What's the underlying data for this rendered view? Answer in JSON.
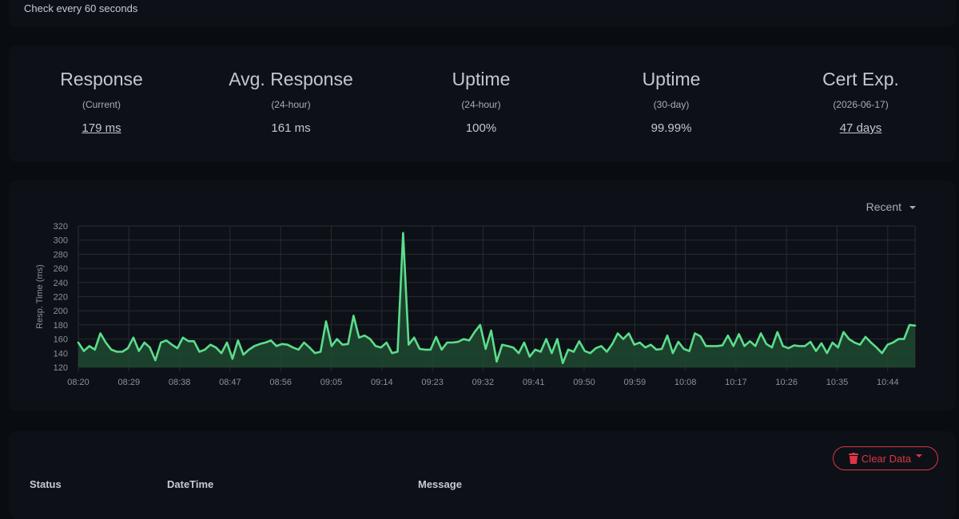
{
  "monitor": {
    "check_interval_text": "Check every 60 seconds"
  },
  "stats": [
    {
      "title": "Response",
      "subtitle": "(Current)",
      "value": "179 ms",
      "link": true
    },
    {
      "title": "Avg. Response",
      "subtitle": "(24-hour)",
      "value": "161 ms",
      "link": false
    },
    {
      "title": "Uptime",
      "subtitle": "(24-hour)",
      "value": "100%",
      "link": false
    },
    {
      "title": "Uptime",
      "subtitle": "(30-day)",
      "value": "99.99%",
      "link": false
    },
    {
      "title": "Cert Exp.",
      "subtitle": "(2026-06-17)",
      "value": "47 days",
      "link": true
    }
  ],
  "chart_controls": {
    "period_label": "Recent"
  },
  "chart_data": {
    "type": "area",
    "ylabel": "Resp. Time (ms)",
    "xlabel": "",
    "ylim": [
      120,
      320
    ],
    "yticks": [
      120,
      140,
      160,
      180,
      200,
      220,
      240,
      260,
      280,
      300,
      320
    ],
    "xtick_labels": [
      "08:20",
      "08:29",
      "08:38",
      "08:47",
      "08:56",
      "09:05",
      "09:14",
      "09:23",
      "09:32",
      "09:41",
      "09:50",
      "09:59",
      "10:08",
      "10:17",
      "10:26",
      "10:35",
      "10:44"
    ],
    "grid": true,
    "line_color": "#5cdd8b",
    "fill_color": "#1f4a31",
    "series": [
      {
        "values": [
          155,
          143,
          150,
          145,
          168,
          155,
          145,
          142,
          142,
          147,
          162,
          143,
          155,
          148,
          130,
          155,
          158,
          152,
          147,
          162,
          157,
          157,
          142,
          145,
          152,
          148,
          140,
          155,
          132,
          158,
          138,
          145,
          150,
          153,
          155,
          158,
          150,
          153,
          152,
          148,
          145,
          155,
          148,
          140,
          142,
          185,
          150,
          160,
          152,
          153,
          193,
          162,
          165,
          160,
          150,
          148,
          155,
          140,
          142,
          310,
          152,
          162,
          146,
          145,
          145,
          163,
          145,
          155,
          155,
          156,
          160,
          158,
          170,
          180,
          146,
          172,
          128,
          152,
          150,
          148,
          140,
          155,
          135,
          145,
          142,
          160,
          140,
          160,
          126,
          145,
          142,
          157,
          143,
          140,
          147,
          150,
          142,
          153,
          168,
          160,
          168,
          152,
          155,
          148,
          152,
          145,
          146,
          165,
          140,
          156,
          146,
          143,
          168,
          164,
          150,
          150,
          150,
          151,
          165,
          150,
          167,
          150,
          157,
          150,
          168,
          153,
          148,
          170,
          150,
          147,
          151,
          150,
          150,
          156,
          143,
          154,
          140,
          155,
          148,
          170,
          160,
          155,
          152,
          163,
          155,
          148,
          140,
          152,
          155,
          160,
          160,
          180,
          179
        ]
      }
    ]
  },
  "events_table": {
    "clear_button_label": "Clear Data",
    "columns": [
      "Status",
      "DateTime",
      "Message"
    ]
  }
}
